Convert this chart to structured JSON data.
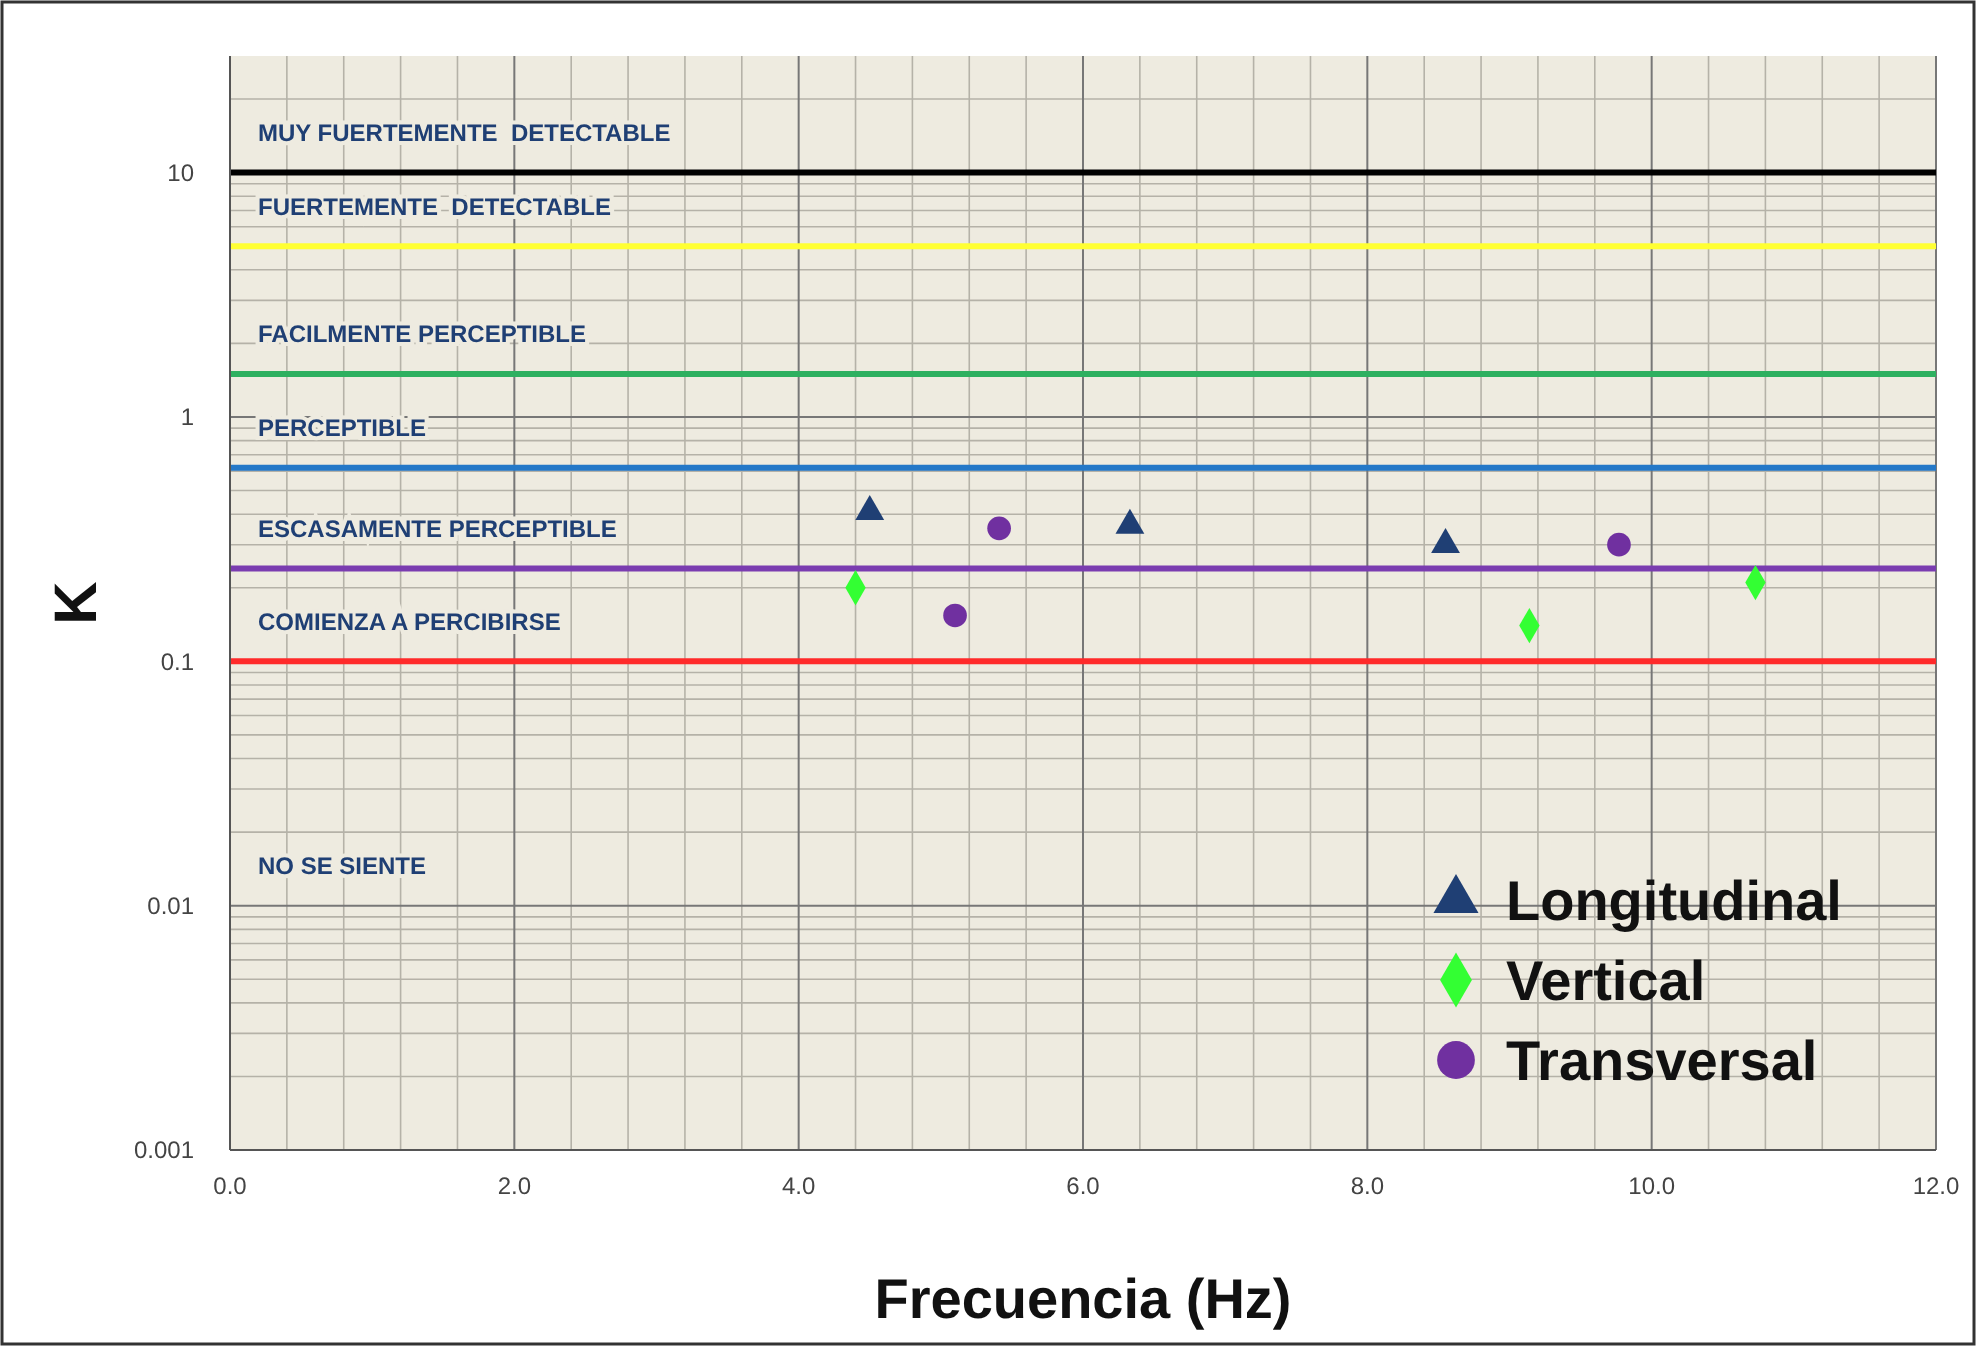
{
  "chart_data": {
    "type": "scatter",
    "xlabel": "Frecuencia (Hz)",
    "ylabel": "K",
    "log": "y",
    "grid": true,
    "legend": "bottom right",
    "xlim": [
      0,
      12
    ],
    "xticks": [
      {
        "value": 0,
        "label": "0.0"
      },
      {
        "value": 2,
        "label": "2.0"
      },
      {
        "value": 4,
        "label": "4.0"
      },
      {
        "value": 6,
        "label": "6.0"
      },
      {
        "value": 8,
        "label": "8.0"
      },
      {
        "value": 10,
        "label": "10.0"
      },
      {
        "value": 12,
        "label": "12.0"
      }
    ],
    "ylim": [
      0.001,
      30
    ],
    "yticks": [
      0.001,
      0.01,
      0.1,
      1,
      10
    ],
    "series": [
      {
        "name": "Longitudinal",
        "color": "#1f3f74",
        "marker": "triangle",
        "x": [
          4.5,
          6.33,
          8.55
        ],
        "values": [
          0.41,
          0.36,
          0.3
        ]
      },
      {
        "name": "Vertical",
        "color": "#33ff33",
        "marker": "diamond",
        "x": [
          4.4,
          9.14,
          10.73
        ],
        "values": [
          0.2,
          0.14,
          0.21
        ]
      },
      {
        "name": "Transversal",
        "color": "#7030a0",
        "marker": "circle",
        "x": [
          5.41,
          5.1,
          9.77
        ],
        "values": [
          0.35,
          0.154,
          0.3
        ]
      }
    ],
    "ref_lines": [
      {
        "axis": "y",
        "value": 10,
        "color": "#000000",
        "label": "MUY FUERTEMENTE  DETECTABLE"
      },
      {
        "axis": "y",
        "value": 5,
        "color": "#ffff33",
        "label": "FUERTEMENTE  DETECTABLE"
      },
      {
        "axis": "y",
        "value": 1.5,
        "color": "#2eb060",
        "label": "FACILMENTE PERCEPTIBLE"
      },
      {
        "axis": "y",
        "value": 0.62,
        "color": "#2478c8",
        "label": "PERCEPTIBLE"
      },
      {
        "axis": "y",
        "value": 0.24,
        "color": "#7a3cb0",
        "label": "ESCASAMENTE PERCEPTIBLE"
      },
      {
        "axis": "y",
        "value": 0.1,
        "color": "#ff2a2a",
        "label": "COMIENZA A PERCIBIRSE"
      }
    ],
    "annotations": [
      "NO SE SIENTE"
    ]
  }
}
